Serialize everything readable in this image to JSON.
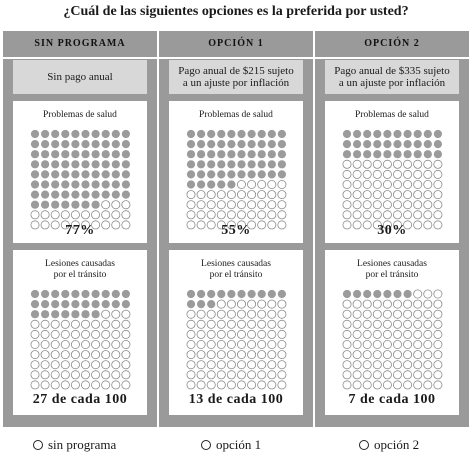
{
  "question": "¿Cuál de las siguientes opciones es la preferida por usted?",
  "columns": [
    {
      "header": "SIN PROGRAMA",
      "cost_lines": [
        "Sin pago anual"
      ],
      "health": {
        "title": "Problemas de salud",
        "value_label": "77%",
        "filled": 77
      },
      "traffic": {
        "title_lines": [
          "Lesiones causadas",
          "por el tránsito"
        ],
        "value_label": "27 de cada 100",
        "filled": 27
      }
    },
    {
      "header": "OPCIÓN 1",
      "cost_lines": [
        "Pago anual de $215 sujeto",
        "a un ajuste por inflación"
      ],
      "health": {
        "title": "Problemas de salud",
        "value_label": "55%",
        "filled": 55
      },
      "traffic": {
        "title_lines": [
          "Lesiones causadas",
          "por el tránsito"
        ],
        "value_label": "13 de cada 100",
        "filled": 13
      }
    },
    {
      "header": "OPCIÓN 2",
      "cost_lines": [
        "Pago anual de $335 sujeto",
        "a un ajuste por inflación"
      ],
      "health": {
        "title": "Problemas de salud",
        "value_label": "30%",
        "filled": 30
      },
      "traffic": {
        "title_lines": [
          "Lesiones causadas",
          "por el tránsito"
        ],
        "value_label": "7 de cada 100",
        "filled": 7
      }
    }
  ],
  "choices": [
    "sin programa",
    "opción 1",
    "opción 2"
  ],
  "colors": {
    "column_bg": "#9a9a9a",
    "cost_bg": "#d8d8d8",
    "dot_filled": "#9b9b9b",
    "dot_empty_stroke": "#8a8a8a"
  }
}
